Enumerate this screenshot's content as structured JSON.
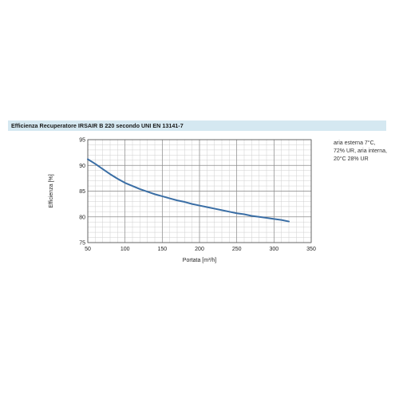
{
  "chart_data": {
    "type": "line",
    "title": "Efficienza Recuperatore IRSAIR B 220 secondo UNI EN 13141-7",
    "xlabel": "Portata [m³/h]",
    "ylabel": "Efficienza [%]",
    "xlim": [
      50,
      350
    ],
    "ylim": [
      75,
      95
    ],
    "x_ticks": [
      50,
      100,
      150,
      200,
      250,
      300,
      350
    ],
    "y_ticks": [
      75,
      80,
      85,
      90,
      95
    ],
    "x_minor_step": 10,
    "y_minor_step": 1,
    "grid": true,
    "legend": "none",
    "line_color": "#3a6ea5",
    "series": [
      {
        "x": [
          50,
          60,
          70,
          80,
          90,
          100,
          110,
          120,
          130,
          140,
          150,
          160,
          170,
          180,
          190,
          200,
          210,
          220,
          230,
          240,
          250,
          260,
          270,
          280,
          290,
          300,
          310,
          320
        ],
        "values": [
          91.2,
          90.3,
          89.3,
          88.3,
          87.4,
          86.6,
          86.0,
          85.4,
          84.9,
          84.4,
          84.0,
          83.6,
          83.2,
          82.9,
          82.5,
          82.2,
          81.9,
          81.6,
          81.3,
          81.0,
          80.7,
          80.5,
          80.2,
          80.0,
          79.8,
          79.6,
          79.4,
          79.1
        ]
      }
    ],
    "annotation": [
      "aria esterna 7°C,",
      "72% UR, aria interna,",
      "20°C 28% UR"
    ]
  }
}
